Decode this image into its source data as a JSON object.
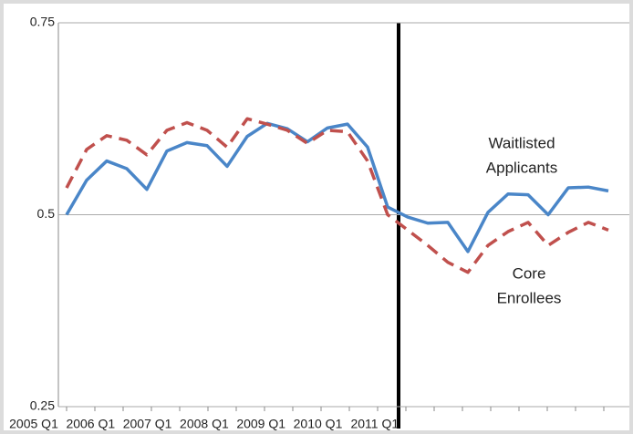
{
  "chart_data": {
    "type": "line",
    "categories": [
      "2005 Q1",
      null,
      null,
      null,
      "2006 Q1",
      null,
      null,
      null,
      "2007 Q1",
      null,
      null,
      null,
      "2008 Q1",
      null,
      null,
      null,
      "2009 Q1",
      null,
      null,
      null,
      "2010 Q1",
      null,
      null,
      null,
      "2011 Q1",
      null,
      null,
      null
    ],
    "series": [
      {
        "color": "#4a86c8",
        "dash": false,
        "values": [
          0.5,
          0.545,
          0.57,
          0.56,
          0.533,
          0.583,
          0.594,
          0.59,
          0.563,
          0.602,
          0.619,
          0.612,
          0.595,
          0.613,
          0.618,
          0.588,
          0.51,
          0.497,
          0.489,
          0.49,
          0.452,
          0.503,
          0.527,
          0.526,
          0.5,
          0.535,
          0.536,
          0.531
        ]
      },
      {
        "color": "#c0504d",
        "dash": true,
        "values": [
          0.535,
          0.585,
          0.603,
          0.597,
          0.578,
          0.61,
          0.62,
          0.61,
          0.588,
          0.625,
          0.618,
          0.61,
          0.593,
          0.61,
          0.608,
          0.57,
          0.5,
          0.48,
          0.46,
          0.438,
          0.425,
          0.46,
          0.478,
          0.49,
          0.46,
          0.477,
          0.49,
          0.48
        ]
      }
    ],
    "ylim": [
      0.25,
      0.75
    ],
    "yticks": [
      0.25,
      0.5,
      0.75
    ],
    "grid": true,
    "annotations": [
      [
        "Waitlisted",
        "Applicants"
      ],
      [
        "Core",
        "Enrollees"
      ]
    ]
  }
}
